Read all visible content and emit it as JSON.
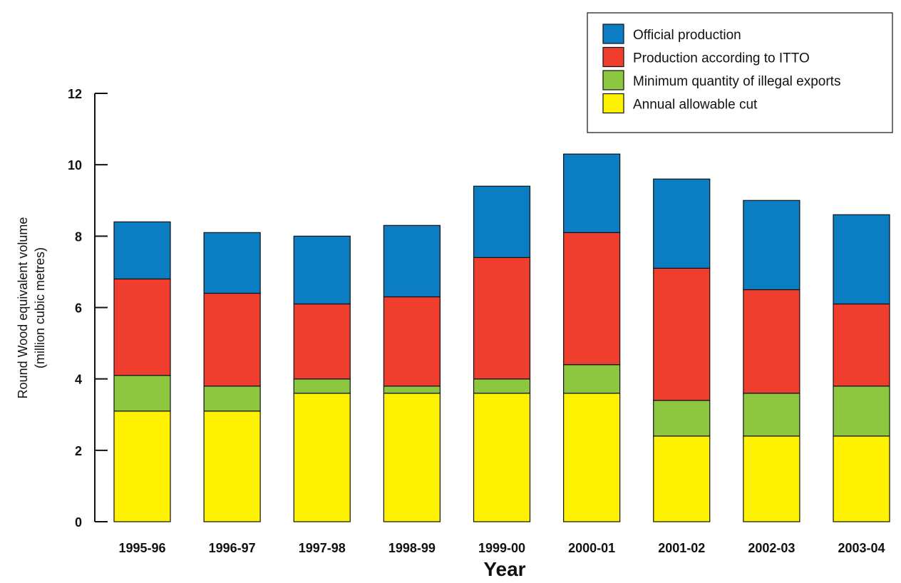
{
  "chart_data": {
    "type": "bar",
    "stacked": true,
    "title": "",
    "xlabel": "Year",
    "ylabel": "Round Wood equivalent volume",
    "ylabel_sub": "(million cubic metres)",
    "ylim": [
      0,
      12
    ],
    "yticks": [
      0,
      2,
      4,
      6,
      8,
      10,
      12
    ],
    "grid": false,
    "legend_position": "top-right",
    "categories": [
      "1995-96",
      "1996-97",
      "1997-98",
      "1998-99",
      "1999-00",
      "2000-01",
      "2001-02",
      "2002-03",
      "2003-04"
    ],
    "series": [
      {
        "name": "Annual allowable cut",
        "color": "#fff200",
        "values": [
          3.1,
          3.1,
          3.6,
          3.6,
          3.6,
          3.6,
          2.4,
          2.4,
          2.4
        ]
      },
      {
        "name": "Minimum quantity of illegal exports",
        "color": "#8dc63f",
        "values": [
          1.0,
          0.7,
          0.4,
          0.2,
          0.4,
          0.8,
          1.0,
          1.2,
          1.4
        ]
      },
      {
        "name": "Production according to ITTO",
        "color": "#ef3e2e",
        "values": [
          2.7,
          2.6,
          2.1,
          2.5,
          3.4,
          3.7,
          3.7,
          2.9,
          2.3
        ]
      },
      {
        "name": "Official production",
        "color": "#0a7dc3",
        "values": [
          1.6,
          1.7,
          1.9,
          2.0,
          2.0,
          2.2,
          2.5,
          2.5,
          2.5
        ]
      }
    ],
    "legend_order": [
      "Official production",
      "Production according to ITTO",
      "Minimum quantity of illegal exports",
      "Annual allowable cut"
    ]
  }
}
